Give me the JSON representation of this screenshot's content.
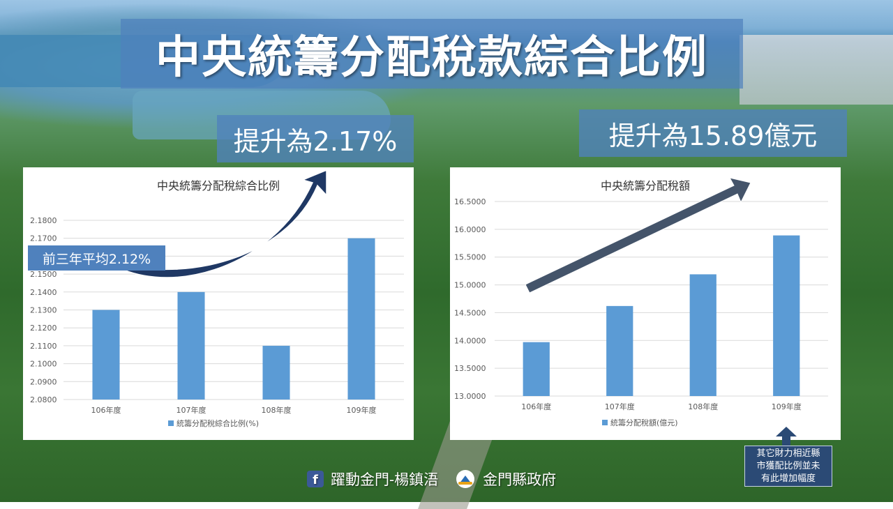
{
  "slide": {
    "title": "中央統籌分配稅款綜合比例",
    "callout_ratio": "提升為2.17%",
    "callout_amount": "提升為15.89億元",
    "callout_average": "前三年平均2.12%",
    "note": "其它財力相近縣\n市獲配比例並未\n有此增加幅度",
    "footer_fb": "躍動金門-楊鎮浯",
    "footer_gov": "金門縣政府",
    "colors": {
      "bar": "#5b9bd5",
      "title_box": "#4f81bd",
      "arrow_left": "#1f3864",
      "arrow_right": "#44546a"
    }
  },
  "chart_data": [
    {
      "type": "bar",
      "title": "中央統籌分配稅綜合比例",
      "categories": [
        "106年度",
        "107年度",
        "108年度",
        "109年度"
      ],
      "series": [
        {
          "name": "統籌分配稅綜合比例(%)",
          "values": [
            2.13,
            2.14,
            2.11,
            2.17
          ]
        }
      ],
      "ylim": [
        2.08,
        2.18
      ],
      "yticks": [
        "2.0800",
        "2.0900",
        "2.1000",
        "2.1100",
        "2.1200",
        "2.1300",
        "2.1400",
        "2.1500",
        "2.1600",
        "2.1700",
        "2.1800"
      ],
      "grid": true,
      "legend": "bottom"
    },
    {
      "type": "bar",
      "title": "中央統籌分配稅額",
      "categories": [
        "106年度",
        "107年度",
        "108年度",
        "109年度"
      ],
      "series": [
        {
          "name": "統籌分配稅額(億元)",
          "values": [
            13.97,
            14.62,
            15.19,
            15.89
          ]
        }
      ],
      "ylim": [
        13.0,
        16.5
      ],
      "yticks": [
        "13.0000",
        "13.5000",
        "14.0000",
        "14.5000",
        "15.0000",
        "15.5000",
        "16.0000",
        "16.5000"
      ],
      "grid": true,
      "legend": "bottom"
    }
  ]
}
